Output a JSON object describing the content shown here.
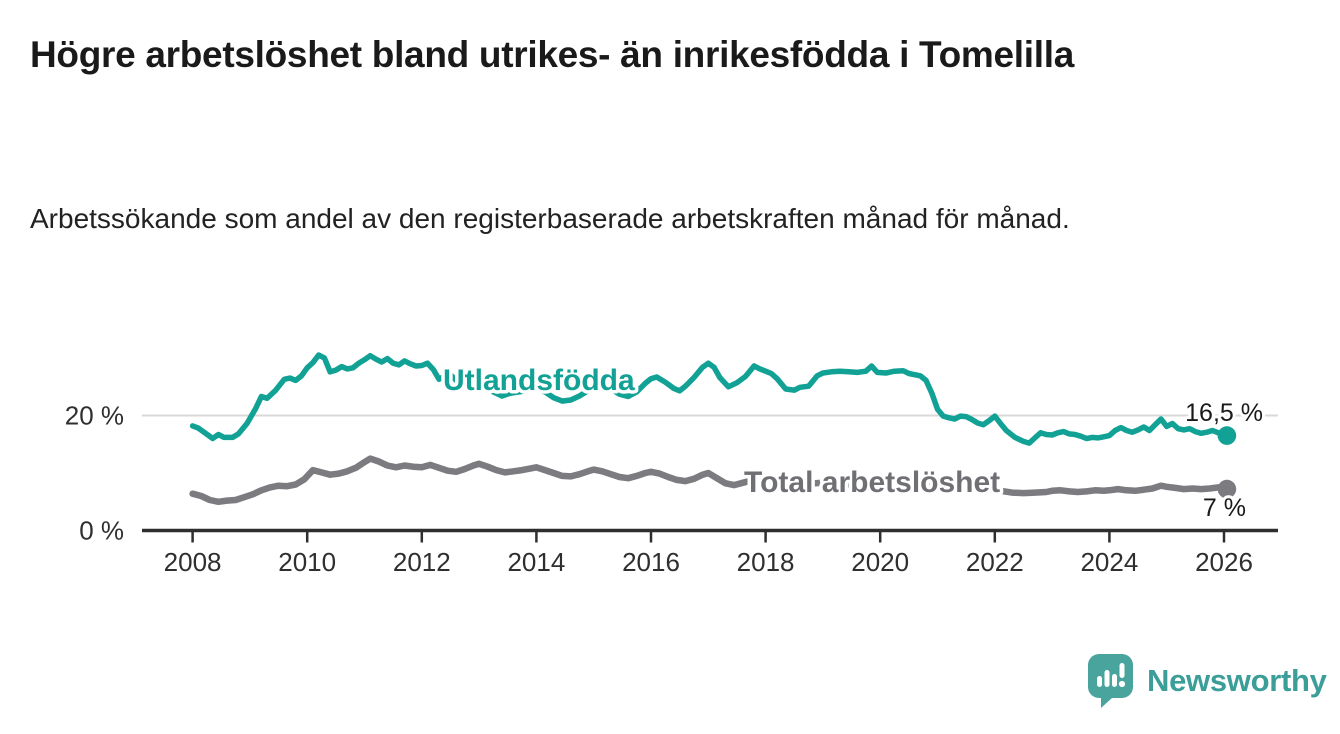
{
  "header": {
    "title": "Högre arbetslöshet bland utrikes- än inrikesfödda i Tomelilla",
    "subtitle": "Arbetssökande som andel av den registerbaserade arbetskraften månad för månad."
  },
  "branding": {
    "name": "Newsworthy",
    "logo_icon": "bar-chart-speech-bubble",
    "logo_color": "#4aa49e"
  },
  "colors": {
    "foreign_born_line": "#12a195",
    "total_line": "#7b7b80",
    "total_label": "#6f6f74",
    "gridline": "#d9d9d9",
    "axis": "#2e2e2e",
    "text": "#1a1a1a"
  },
  "chart_data": {
    "type": "line",
    "title": "Högre arbetslöshet bland utrikes- än inrikesfödda i Tomelilla",
    "subtitle": "Arbetssökande som andel av den registerbaserade arbetskraften månad för månad.",
    "xlabel": "",
    "ylabel": "",
    "x_axis": {
      "ticks": [
        2008,
        2010,
        2012,
        2014,
        2016,
        2018,
        2020,
        2022,
        2024,
        2026
      ],
      "range": [
        2007.1,
        2026.9
      ]
    },
    "y_axis": {
      "ticks": [
        {
          "value": 0,
          "label": "0 %"
        },
        {
          "value": 20,
          "label": "20 %"
        }
      ],
      "range": [
        0,
        34
      ]
    },
    "gridlines": [
      20
    ],
    "grid": "horizontal-only",
    "legend_position": "inline-labels",
    "series": [
      {
        "name": "Utlandsfödda",
        "color": "#12a195",
        "end_value": 16.5,
        "end_label": "16,5 %",
        "points": [
          [
            2008.0,
            18.2
          ],
          [
            2008.1,
            17.8
          ],
          [
            2008.2,
            17.1
          ],
          [
            2008.35,
            16.0
          ],
          [
            2008.45,
            16.7
          ],
          [
            2008.55,
            16.2
          ],
          [
            2008.7,
            16.2
          ],
          [
            2008.8,
            16.8
          ],
          [
            2008.95,
            18.6
          ],
          [
            2009.1,
            21.2
          ],
          [
            2009.2,
            23.3
          ],
          [
            2009.3,
            23.0
          ],
          [
            2009.45,
            24.4
          ],
          [
            2009.6,
            26.3
          ],
          [
            2009.7,
            26.5
          ],
          [
            2009.8,
            26.1
          ],
          [
            2009.9,
            26.9
          ],
          [
            2010.0,
            28.3
          ],
          [
            2010.1,
            29.2
          ],
          [
            2010.2,
            30.5
          ],
          [
            2010.3,
            30.0
          ],
          [
            2010.4,
            27.6
          ],
          [
            2010.5,
            27.9
          ],
          [
            2010.6,
            28.5
          ],
          [
            2010.7,
            28.1
          ],
          [
            2010.8,
            28.3
          ],
          [
            2010.9,
            29.1
          ],
          [
            2011.0,
            29.7
          ],
          [
            2011.1,
            30.4
          ],
          [
            2011.2,
            29.8
          ],
          [
            2011.3,
            29.3
          ],
          [
            2011.4,
            29.9
          ],
          [
            2011.5,
            29.1
          ],
          [
            2011.6,
            28.8
          ],
          [
            2011.7,
            29.5
          ],
          [
            2011.8,
            29.0
          ],
          [
            2011.9,
            28.6
          ],
          [
            2012.0,
            28.7
          ],
          [
            2012.1,
            29.1
          ],
          [
            2012.2,
            28.0
          ],
          [
            2012.3,
            26.3
          ],
          [
            2012.4,
            26.9
          ],
          [
            2012.5,
            27.1
          ],
          [
            2012.6,
            26.1
          ],
          [
            2012.75,
            25.3
          ],
          [
            2012.9,
            25.1
          ],
          [
            2013.0,
            25.4
          ],
          [
            2013.1,
            24.9
          ],
          [
            2013.25,
            24.1
          ],
          [
            2013.4,
            23.4
          ],
          [
            2013.55,
            23.9
          ],
          [
            2013.7,
            24.1
          ],
          [
            2013.85,
            24.4
          ],
          [
            2014.0,
            24.7
          ],
          [
            2014.15,
            24.1
          ],
          [
            2014.3,
            23.1
          ],
          [
            2014.45,
            22.5
          ],
          [
            2014.6,
            22.7
          ],
          [
            2014.75,
            23.4
          ],
          [
            2014.9,
            24.3
          ],
          [
            2015.0,
            24.9
          ],
          [
            2015.15,
            25.3
          ],
          [
            2015.3,
            24.6
          ],
          [
            2015.45,
            23.7
          ],
          [
            2015.6,
            23.3
          ],
          [
            2015.75,
            24.1
          ],
          [
            2015.9,
            25.6
          ],
          [
            2016.0,
            26.4
          ],
          [
            2016.1,
            26.7
          ],
          [
            2016.25,
            25.8
          ],
          [
            2016.4,
            24.7
          ],
          [
            2016.5,
            24.3
          ],
          [
            2016.6,
            25.1
          ],
          [
            2016.75,
            26.6
          ],
          [
            2016.9,
            28.4
          ],
          [
            2017.0,
            29.1
          ],
          [
            2017.1,
            28.4
          ],
          [
            2017.2,
            26.6
          ],
          [
            2017.35,
            25.0
          ],
          [
            2017.5,
            25.7
          ],
          [
            2017.65,
            26.8
          ],
          [
            2017.8,
            28.6
          ],
          [
            2017.9,
            28.1
          ],
          [
            2018.0,
            27.7
          ],
          [
            2018.1,
            27.3
          ],
          [
            2018.2,
            26.4
          ],
          [
            2018.35,
            24.6
          ],
          [
            2018.5,
            24.4
          ],
          [
            2018.6,
            24.9
          ],
          [
            2018.75,
            25.1
          ],
          [
            2018.9,
            26.9
          ],
          [
            2019.0,
            27.4
          ],
          [
            2019.15,
            27.6
          ],
          [
            2019.3,
            27.7
          ],
          [
            2019.45,
            27.6
          ],
          [
            2019.6,
            27.5
          ],
          [
            2019.75,
            27.7
          ],
          [
            2019.85,
            28.6
          ],
          [
            2019.95,
            27.5
          ],
          [
            2020.1,
            27.4
          ],
          [
            2020.25,
            27.7
          ],
          [
            2020.4,
            27.8
          ],
          [
            2020.5,
            27.3
          ],
          [
            2020.6,
            27.1
          ],
          [
            2020.7,
            26.9
          ],
          [
            2020.8,
            26.1
          ],
          [
            2020.9,
            23.9
          ],
          [
            2021.0,
            21.1
          ],
          [
            2021.1,
            19.9
          ],
          [
            2021.2,
            19.6
          ],
          [
            2021.3,
            19.4
          ],
          [
            2021.4,
            19.9
          ],
          [
            2021.5,
            19.8
          ],
          [
            2021.6,
            19.3
          ],
          [
            2021.7,
            18.7
          ],
          [
            2021.8,
            18.4
          ],
          [
            2021.9,
            19.1
          ],
          [
            2022.0,
            19.9
          ],
          [
            2022.1,
            18.6
          ],
          [
            2022.2,
            17.4
          ],
          [
            2022.35,
            16.2
          ],
          [
            2022.5,
            15.5
          ],
          [
            2022.6,
            15.2
          ],
          [
            2022.7,
            16.1
          ],
          [
            2022.8,
            17.0
          ],
          [
            2022.9,
            16.7
          ],
          [
            2023.0,
            16.6
          ],
          [
            2023.1,
            17.0
          ],
          [
            2023.2,
            17.2
          ],
          [
            2023.3,
            16.8
          ],
          [
            2023.4,
            16.7
          ],
          [
            2023.5,
            16.4
          ],
          [
            2023.6,
            16.0
          ],
          [
            2023.7,
            16.2
          ],
          [
            2023.8,
            16.1
          ],
          [
            2023.9,
            16.3
          ],
          [
            2024.0,
            16.5
          ],
          [
            2024.1,
            17.4
          ],
          [
            2024.2,
            17.9
          ],
          [
            2024.3,
            17.4
          ],
          [
            2024.4,
            17.1
          ],
          [
            2024.5,
            17.5
          ],
          [
            2024.6,
            18.0
          ],
          [
            2024.7,
            17.4
          ],
          [
            2024.8,
            18.4
          ],
          [
            2024.9,
            19.4
          ],
          [
            2025.0,
            18.1
          ],
          [
            2025.1,
            18.6
          ],
          [
            2025.2,
            17.7
          ],
          [
            2025.3,
            17.5
          ],
          [
            2025.4,
            17.7
          ],
          [
            2025.5,
            17.2
          ],
          [
            2025.6,
            16.9
          ],
          [
            2025.7,
            17.1
          ],
          [
            2025.8,
            17.4
          ],
          [
            2025.9,
            17.0
          ],
          [
            2026.0,
            16.8
          ],
          [
            2026.05,
            16.5
          ]
        ]
      },
      {
        "name": "Total arbetslöshet",
        "color": "#7b7b80",
        "end_value": 7,
        "end_label": "7 %",
        "points": [
          [
            2008.0,
            6.4
          ],
          [
            2008.15,
            6.0
          ],
          [
            2008.3,
            5.3
          ],
          [
            2008.45,
            5.0
          ],
          [
            2008.6,
            5.2
          ],
          [
            2008.75,
            5.3
          ],
          [
            2008.9,
            5.8
          ],
          [
            2009.05,
            6.3
          ],
          [
            2009.2,
            7.0
          ],
          [
            2009.35,
            7.5
          ],
          [
            2009.5,
            7.8
          ],
          [
            2009.65,
            7.7
          ],
          [
            2009.8,
            8.0
          ],
          [
            2009.95,
            8.9
          ],
          [
            2010.1,
            10.5
          ],
          [
            2010.25,
            10.1
          ],
          [
            2010.4,
            9.7
          ],
          [
            2010.55,
            9.9
          ],
          [
            2010.7,
            10.3
          ],
          [
            2010.85,
            10.9
          ],
          [
            2011.0,
            11.9
          ],
          [
            2011.1,
            12.5
          ],
          [
            2011.25,
            12.0
          ],
          [
            2011.4,
            11.3
          ],
          [
            2011.55,
            11.0
          ],
          [
            2011.7,
            11.3
          ],
          [
            2011.85,
            11.1
          ],
          [
            2012.0,
            11.0
          ],
          [
            2012.15,
            11.4
          ],
          [
            2012.3,
            10.9
          ],
          [
            2012.45,
            10.4
          ],
          [
            2012.6,
            10.2
          ],
          [
            2012.75,
            10.7
          ],
          [
            2012.9,
            11.3
          ],
          [
            2013.0,
            11.6
          ],
          [
            2013.15,
            11.1
          ],
          [
            2013.3,
            10.5
          ],
          [
            2013.45,
            10.1
          ],
          [
            2013.6,
            10.3
          ],
          [
            2013.75,
            10.5
          ],
          [
            2013.9,
            10.8
          ],
          [
            2014.0,
            11.0
          ],
          [
            2014.15,
            10.5
          ],
          [
            2014.3,
            10.0
          ],
          [
            2014.45,
            9.5
          ],
          [
            2014.6,
            9.4
          ],
          [
            2014.75,
            9.8
          ],
          [
            2014.9,
            10.3
          ],
          [
            2015.0,
            10.6
          ],
          [
            2015.15,
            10.3
          ],
          [
            2015.3,
            9.8
          ],
          [
            2015.45,
            9.3
          ],
          [
            2015.6,
            9.1
          ],
          [
            2015.75,
            9.5
          ],
          [
            2015.9,
            10.0
          ],
          [
            2016.0,
            10.2
          ],
          [
            2016.15,
            9.9
          ],
          [
            2016.3,
            9.3
          ],
          [
            2016.45,
            8.8
          ],
          [
            2016.6,
            8.6
          ],
          [
            2016.75,
            9.0
          ],
          [
            2016.9,
            9.7
          ],
          [
            2017.0,
            10.0
          ],
          [
            2017.15,
            9.1
          ],
          [
            2017.3,
            8.2
          ],
          [
            2017.45,
            7.9
          ],
          [
            2017.6,
            8.3
          ],
          [
            2017.75,
            8.7
          ],
          [
            2017.9,
            8.9
          ],
          [
            2018.1,
            8.7
          ],
          [
            2018.4,
            8.3
          ],
          [
            2018.7,
            8.1
          ],
          [
            2019.0,
            8.3
          ],
          [
            2019.3,
            8.1
          ],
          [
            2019.6,
            7.9
          ],
          [
            2019.9,
            8.1
          ],
          [
            2020.2,
            8.7
          ],
          [
            2020.5,
            8.9
          ],
          [
            2020.8,
            8.5
          ],
          [
            2021.0,
            8.1
          ],
          [
            2021.3,
            7.7
          ],
          [
            2021.6,
            7.3
          ],
          [
            2021.9,
            7.1
          ],
          [
            2022.1,
            6.9
          ],
          [
            2022.3,
            6.6
          ],
          [
            2022.5,
            6.5
          ],
          [
            2022.7,
            6.6
          ],
          [
            2022.9,
            6.7
          ],
          [
            2023.0,
            6.9
          ],
          [
            2023.15,
            7.0
          ],
          [
            2023.3,
            6.8
          ],
          [
            2023.45,
            6.7
          ],
          [
            2023.6,
            6.8
          ],
          [
            2023.75,
            7.0
          ],
          [
            2023.9,
            6.9
          ],
          [
            2024.0,
            7.0
          ],
          [
            2024.15,
            7.2
          ],
          [
            2024.3,
            7.0
          ],
          [
            2024.45,
            6.9
          ],
          [
            2024.6,
            7.1
          ],
          [
            2024.75,
            7.3
          ],
          [
            2024.9,
            7.8
          ],
          [
            2025.0,
            7.6
          ],
          [
            2025.15,
            7.4
          ],
          [
            2025.3,
            7.2
          ],
          [
            2025.45,
            7.3
          ],
          [
            2025.6,
            7.2
          ],
          [
            2025.75,
            7.3
          ],
          [
            2025.9,
            7.5
          ],
          [
            2026.05,
            7.2
          ]
        ]
      }
    ]
  }
}
